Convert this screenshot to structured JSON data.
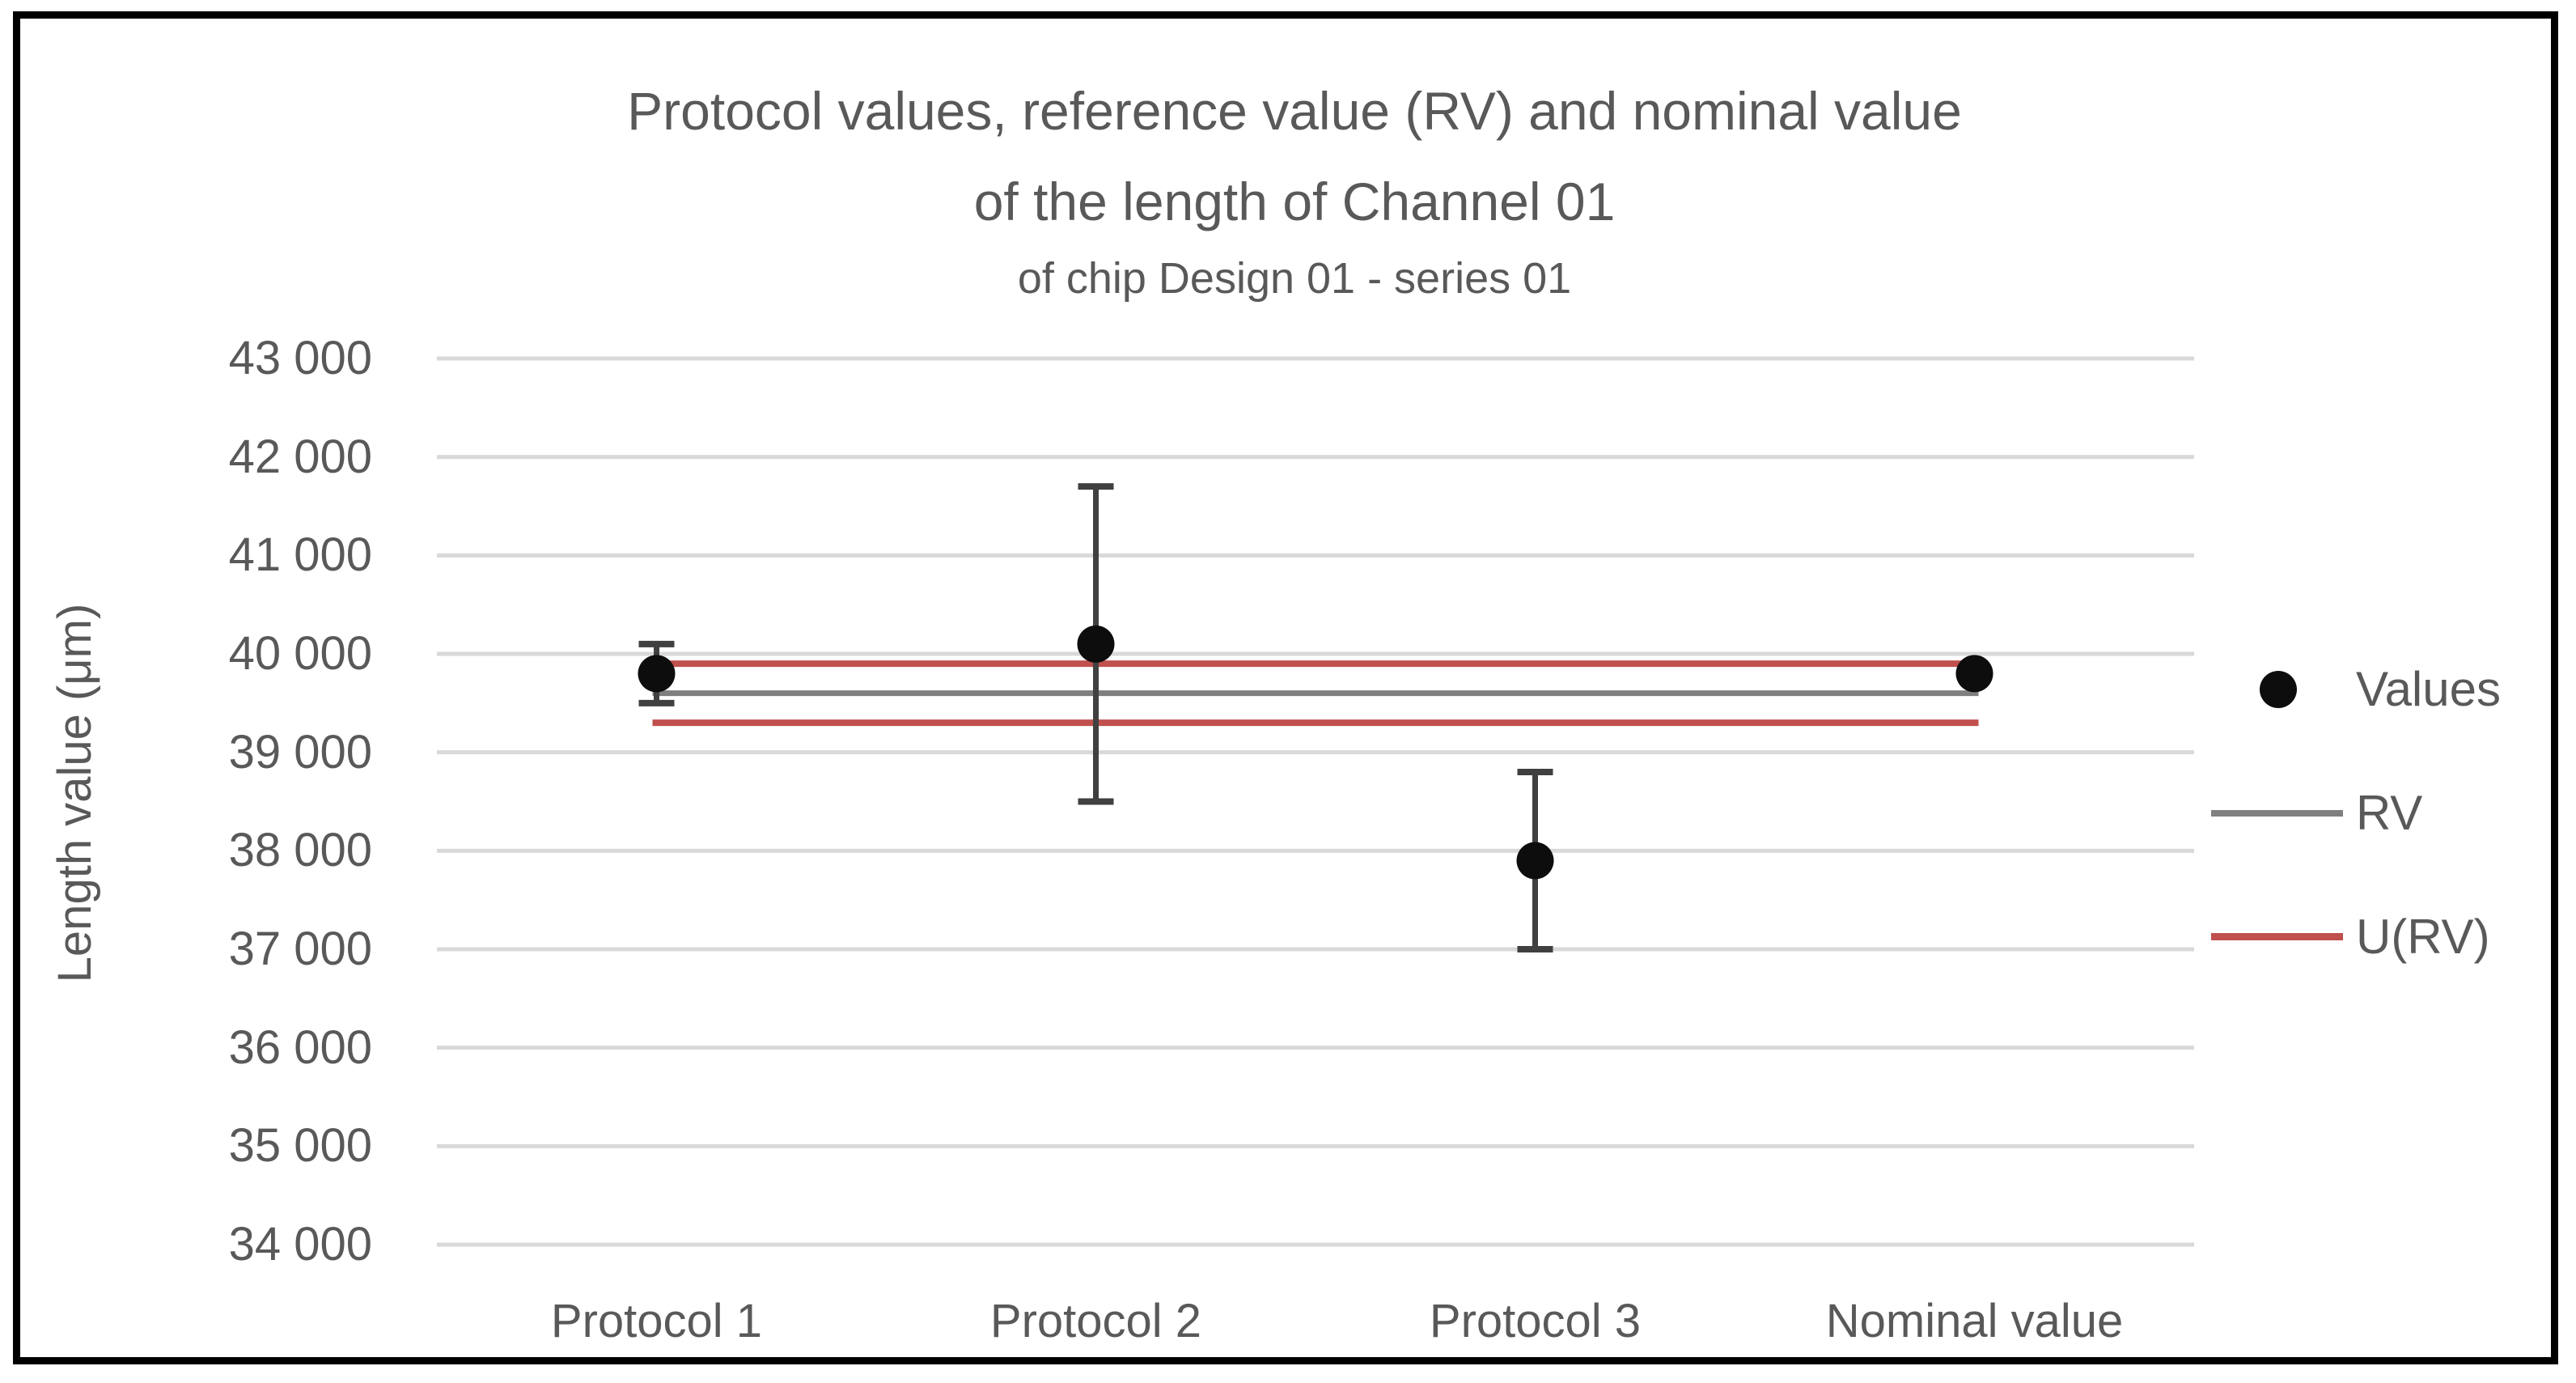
{
  "colors": {
    "background": "#ffffff",
    "border": "#000000",
    "grid": "#d9d9d9",
    "text": "#595959",
    "marker": "#0d0d0d",
    "error_bar": "#404040",
    "rv_line": "#7f7f7f",
    "urv_line": "#c0504d"
  },
  "chart_data": {
    "type": "scatter",
    "title_lines": [
      "Protocol values, reference value (RV) and nominal value",
      "of the length of Channel 01"
    ],
    "subtitle": "of chip Design 01 - series 01",
    "ylabel": "Length value (μm)",
    "xlabel": "",
    "ylim": [
      34000,
      43000
    ],
    "y_tick_step": 1000,
    "grid": true,
    "legend_position": "right",
    "y_ticks": [
      {
        "value": 43000,
        "label": "43 000"
      },
      {
        "value": 42000,
        "label": "42 000"
      },
      {
        "value": 41000,
        "label": "41 000"
      },
      {
        "value": 40000,
        "label": "40 000"
      },
      {
        "value": 39000,
        "label": "39 000"
      },
      {
        "value": 38000,
        "label": "38 000"
      },
      {
        "value": 37000,
        "label": "37 000"
      },
      {
        "value": 36000,
        "label": "36 000"
      },
      {
        "value": 35000,
        "label": "35 000"
      },
      {
        "value": 34000,
        "label": "34 000"
      }
    ],
    "categories": [
      "Protocol 1",
      "Protocol 2",
      "Protocol 3",
      "Nominal value"
    ],
    "series": [
      {
        "name": "Values",
        "marker": "circle",
        "color": "#0d0d0d",
        "values": [
          39800,
          40100,
          37900,
          39800
        ],
        "error_bars": [
          {
            "plus": 300,
            "minus": 300
          },
          {
            "plus": 1600,
            "minus": 1600
          },
          {
            "plus": 900,
            "minus": 900
          },
          null
        ]
      }
    ],
    "reference_lines": [
      {
        "name": "RV",
        "value": 39600,
        "color": "#7f7f7f",
        "width": 7
      },
      {
        "name": "U(RV) upper",
        "value": 39900,
        "color": "#c0504d",
        "width": 8
      },
      {
        "name": "U(RV) lower",
        "value": 39300,
        "color": "#c0504d",
        "width": 8
      }
    ],
    "legend": [
      {
        "label": "Values",
        "marker": "dot",
        "color": "#0d0d0d"
      },
      {
        "label": "RV",
        "marker": "line",
        "color": "#7f7f7f"
      },
      {
        "label": "U(RV)",
        "marker": "line",
        "color": "#c0504d"
      }
    ]
  }
}
